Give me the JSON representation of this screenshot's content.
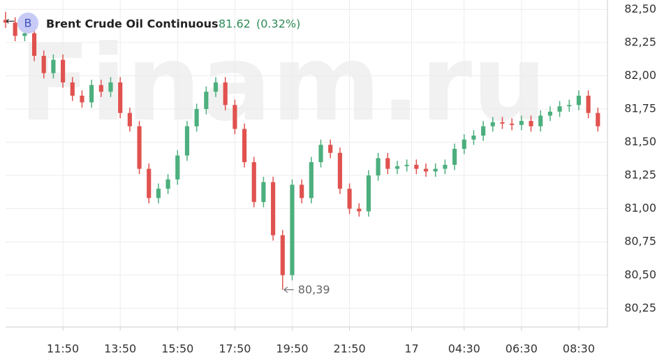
{
  "header": {
    "badge": "B",
    "title": "Brent Crude Oil Continuous",
    "price": "81.62",
    "change": "(0.32%)"
  },
  "watermark": "Finam.ru",
  "chart_data": {
    "type": "candlestick",
    "open": [
      82.42,
      82.4,
      82.3,
      82.32,
      82.15,
      82.02,
      82.12,
      81.95,
      81.85,
      81.8,
      81.93,
      81.88,
      81.95,
      81.72,
      81.62,
      81.3,
      81.08,
      81.15,
      81.22,
      81.4,
      81.62,
      81.75,
      81.88,
      81.95,
      81.78,
      81.6,
      81.35,
      81.05,
      81.2,
      80.8,
      80.5,
      81.18,
      81.08,
      81.35,
      81.48,
      81.42,
      81.15,
      81.0,
      80.98,
      81.25,
      81.38,
      81.3,
      81.32,
      81.33,
      81.3,
      81.28,
      81.3,
      81.33,
      81.45,
      81.52,
      81.55,
      81.62,
      81.65,
      81.64,
      81.63,
      81.66,
      81.62,
      81.7,
      81.73,
      81.77,
      81.78,
      81.85,
      81.72
    ],
    "high": [
      82.48,
      82.44,
      82.36,
      82.36,
      82.19,
      82.16,
      82.16,
      81.99,
      81.89,
      81.97,
      81.97,
      81.99,
      81.99,
      81.76,
      81.66,
      81.34,
      81.19,
      81.26,
      81.44,
      81.66,
      81.79,
      81.92,
      81.99,
      81.99,
      81.82,
      81.64,
      81.39,
      81.24,
      81.24,
      80.84,
      81.22,
      81.22,
      81.39,
      81.52,
      81.52,
      81.46,
      81.19,
      81.04,
      81.29,
      81.42,
      81.42,
      81.36,
      81.37,
      81.37,
      81.34,
      81.34,
      81.37,
      81.49,
      81.56,
      81.59,
      81.66,
      81.69,
      81.69,
      81.68,
      81.7,
      81.7,
      81.74,
      81.77,
      81.81,
      81.82,
      81.89,
      81.89,
      81.76
    ],
    "low": [
      82.36,
      82.26,
      82.26,
      82.11,
      81.98,
      81.98,
      81.91,
      81.81,
      81.76,
      81.76,
      81.84,
      81.84,
      81.68,
      81.58,
      81.26,
      81.04,
      81.04,
      81.11,
      81.18,
      81.36,
      81.58,
      81.71,
      81.84,
      81.74,
      81.56,
      81.31,
      81.01,
      81.01,
      80.76,
      80.39,
      80.46,
      81.04,
      81.04,
      81.31,
      81.38,
      81.11,
      80.96,
      80.94,
      80.94,
      81.21,
      81.26,
      81.26,
      81.28,
      81.26,
      81.24,
      81.24,
      81.26,
      81.29,
      81.41,
      81.48,
      81.51,
      81.58,
      81.6,
      81.59,
      81.59,
      81.58,
      81.58,
      81.66,
      81.69,
      81.73,
      81.74,
      81.68,
      81.58
    ],
    "close": [
      82.4,
      82.3,
      82.32,
      82.15,
      82.02,
      82.12,
      81.95,
      81.85,
      81.8,
      81.93,
      81.88,
      81.95,
      81.72,
      81.62,
      81.3,
      81.08,
      81.15,
      81.22,
      81.4,
      81.62,
      81.75,
      81.88,
      81.95,
      81.78,
      81.6,
      81.35,
      81.05,
      81.2,
      80.8,
      80.5,
      81.18,
      81.08,
      81.35,
      81.48,
      81.42,
      81.15,
      81.0,
      80.98,
      81.25,
      81.38,
      81.3,
      81.32,
      81.33,
      81.3,
      81.28,
      81.3,
      81.33,
      81.45,
      81.52,
      81.55,
      81.62,
      81.65,
      81.64,
      81.63,
      81.66,
      81.62,
      81.7,
      81.73,
      81.77,
      81.78,
      81.85,
      81.72,
      81.62
    ],
    "up_color": "#4caf7d",
    "down_color": "#e0524f",
    "xlim": [
      0,
      63
    ],
    "xticks": [
      {
        "value": 6,
        "label": "11:50"
      },
      {
        "value": 12,
        "label": "13:50"
      },
      {
        "value": 18,
        "label": "15:50"
      },
      {
        "value": 24,
        "label": "17:50"
      },
      {
        "value": 30,
        "label": "19:50"
      },
      {
        "value": 36,
        "label": "21:50"
      },
      {
        "value": 42.5,
        "label": "17"
      },
      {
        "value": 48,
        "label": "04:30"
      },
      {
        "value": 54,
        "label": "06:30"
      },
      {
        "value": 60,
        "label": "08:30"
      }
    ],
    "ylim": [
      80.11,
      82.57
    ],
    "yticks": [
      {
        "value": 80.25,
        "label": "80,25"
      },
      {
        "value": 80.5,
        "label": "80,50"
      },
      {
        "value": 80.75,
        "label": "80,75"
      },
      {
        "value": 81,
        "label": "81,00"
      },
      {
        "value": 81.25,
        "label": "81,25"
      },
      {
        "value": 81.5,
        "label": "81,50"
      },
      {
        "value": 81.75,
        "label": "81,75"
      },
      {
        "value": 82,
        "label": "82,00"
      },
      {
        "value": 82.25,
        "label": "82,25"
      },
      {
        "value": 82.5,
        "label": "82,50"
      }
    ],
    "grid": true,
    "annotation": {
      "value": 80.39,
      "label": "80,39"
    }
  }
}
